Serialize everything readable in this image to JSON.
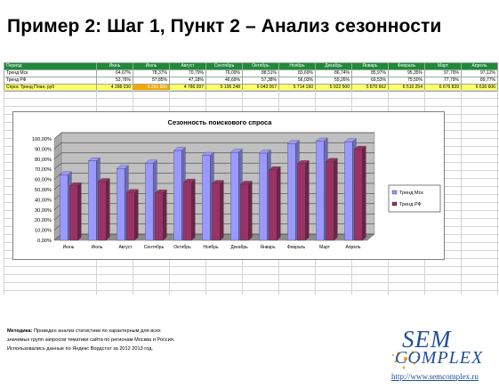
{
  "title": "Пример 2: Шаг 1, Пункт 2 – Анализ сезонности",
  "table": {
    "header": [
      "Период",
      "Июнь",
      "Июль",
      "Август",
      "Сентябрь",
      "Октябрь",
      "Ноябрь",
      "Декабрь",
      "Январь",
      "Февраль",
      "Март",
      "Апрель"
    ],
    "rows": [
      {
        "label": "Тренд Мск",
        "cells": [
          "64,67%",
          "78,37%",
          "70,79%",
          "76,09%",
          "88,51%",
          "83,69%",
          "86,74%",
          "85,97%",
          "95,35%",
          "97,79%",
          "97,12%"
        ]
      },
      {
        "label": "Тренд РФ",
        "cells": [
          "53,76%",
          "57,85%",
          "47,18%",
          "46,69%",
          "57,38%",
          "56,03%",
          "55,26%",
          "69,53%",
          "75,50%",
          "77,79%",
          "89,77%"
        ]
      },
      {
        "label": "Спрос Тренд План, руб",
        "cells": [
          "4 398 030",
          "5 261 880",
          "4 786 097",
          "5 195 248",
          "6 043 067",
          "5 714 190",
          "5 922 500",
          "5 870 662",
          "6 510 254",
          "6 676 839",
          "6 630 606"
        ]
      }
    ]
  },
  "chart_data": {
    "type": "bar",
    "title": "Сезонность поискового спроса",
    "categories": [
      "Июнь",
      "Июль",
      "Август",
      "Сентябрь",
      "Октябрь",
      "Ноябрь",
      "Декабрь",
      "Январь",
      "Февраль",
      "Март",
      "Апрель"
    ],
    "series": [
      {
        "name": "Тренд Мск",
        "values": [
          64.67,
          78.37,
          70.79,
          76.09,
          88.51,
          83.69,
          86.74,
          85.97,
          95.35,
          97.79,
          97.12
        ]
      },
      {
        "name": "Тренд РФ",
        "values": [
          53.76,
          57.85,
          47.18,
          46.69,
          57.38,
          56.03,
          55.26,
          69.53,
          75.5,
          77.79,
          89.77
        ]
      }
    ],
    "yticks": [
      "0,00%",
      "10,00%",
      "20,00%",
      "30,00%",
      "40,00%",
      "50,00%",
      "60,00%",
      "70,00%",
      "80,00%",
      "90,00%",
      "100,00%"
    ],
    "ylim": [
      0,
      100
    ],
    "legend": "right",
    "grid": true,
    "colors": {
      "series1": "#9999ff",
      "series2": "#993366",
      "wall": "#c0c0c0"
    }
  },
  "method": {
    "heading": "Методика:",
    "line1": " Проведен анализ статистики по характерным для всех",
    "line2": "значимых групп запросов тематики сайта по регионам Москва и Россия.",
    "line3": "Использовались данные по Яндекс Вордстат за 2012 2013 год."
  },
  "logo": {
    "word1": "SEM",
    "word2": "COMPLEX",
    "url": "http://www.semcomplex.ru"
  }
}
